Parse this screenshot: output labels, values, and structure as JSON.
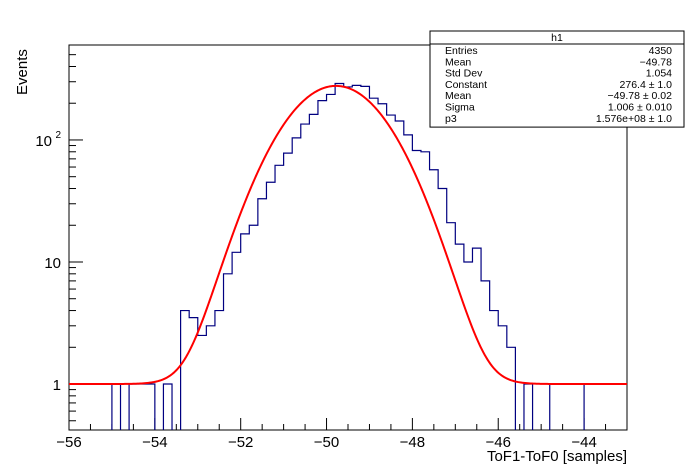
{
  "chart_data": {
    "type": "histogram",
    "xlabel": "ToF1-ToF0 [samples]",
    "ylabel": "Events",
    "xlim": [
      -56,
      -43
    ],
    "ylim": [
      0.42,
      600
    ],
    "yscale": "log",
    "x_ticks": [
      -56,
      -54,
      -52,
      -50,
      -48,
      -46,
      -44
    ],
    "x_tick_labels": [
      "−56",
      "−54",
      "−52",
      "−50",
      "−48",
      "−46",
      "−44"
    ],
    "y_tick_labels": [
      {
        "value": 1,
        "label": "1"
      },
      {
        "value": 10,
        "label": "10"
      },
      {
        "value": 100,
        "label": "10",
        "exp": "2"
      }
    ],
    "histogram": {
      "name": "h1",
      "bin_width": 0.2,
      "color": "#000080",
      "bins": [
        [
          -55.0,
          1
        ],
        [
          -54.6,
          1
        ],
        [
          -54.4,
          1
        ],
        [
          -54.2,
          1
        ],
        [
          -53.8,
          1
        ],
        [
          -53.4,
          4
        ],
        [
          -53.2,
          3.5
        ],
        [
          -53.0,
          2.5
        ],
        [
          -52.8,
          3
        ],
        [
          -52.6,
          4
        ],
        [
          -52.4,
          8
        ],
        [
          -52.2,
          12
        ],
        [
          -52.0,
          17
        ],
        [
          -51.8,
          20
        ],
        [
          -51.6,
          33
        ],
        [
          -51.4,
          45
        ],
        [
          -51.2,
          62
        ],
        [
          -51.0,
          78
        ],
        [
          -50.8,
          104
        ],
        [
          -50.6,
          135
        ],
        [
          -50.4,
          162
        ],
        [
          -50.2,
          210
        ],
        [
          -50.0,
          236
        ],
        [
          -49.8,
          290
        ],
        [
          -49.6,
          272
        ],
        [
          -49.4,
          280
        ],
        [
          -49.2,
          275
        ],
        [
          -49.0,
          220
        ],
        [
          -48.8,
          198
        ],
        [
          -48.6,
          160
        ],
        [
          -48.4,
          143
        ],
        [
          -48.2,
          110
        ],
        [
          -48.0,
          82
        ],
        [
          -47.8,
          80
        ],
        [
          -47.6,
          57
        ],
        [
          -47.4,
          40
        ],
        [
          -47.2,
          21
        ],
        [
          -47.0,
          14
        ],
        [
          -46.8,
          10
        ],
        [
          -46.6,
          13
        ],
        [
          -46.4,
          7
        ],
        [
          -46.2,
          4
        ],
        [
          -46.0,
          3
        ],
        [
          -45.8,
          2
        ],
        [
          -45.4,
          1
        ],
        [
          -44.8,
          1
        ],
        [
          -44.6,
          1
        ],
        [
          -44.4,
          1
        ],
        [
          -44.2,
          1
        ]
      ]
    },
    "fit": {
      "function": "gaus + p3",
      "color": "#ff0000",
      "constant": 276.4,
      "mean": -49.78,
      "sigma": 1.006,
      "baseline": 1.0
    },
    "stats_box": {
      "title": "h1",
      "rows": [
        {
          "label": "Entries",
          "value": "4350"
        },
        {
          "label": "Mean",
          "value": "−49.78"
        },
        {
          "label": "Std Dev",
          "value": "1.054"
        },
        {
          "label": "Constant",
          "value": "276.4 ± 1.0"
        },
        {
          "label": "Mean",
          "value": "−49.78 ± 0.02"
        },
        {
          "label": "Sigma",
          "value": "1.006 ± 0.010"
        },
        {
          "label": "p3",
          "value": "1.576e+08 ± 1.0"
        }
      ]
    }
  }
}
